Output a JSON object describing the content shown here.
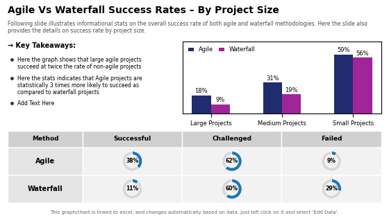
{
  "title": "Agile Vs Waterfall Success Rates – By Project Size",
  "subtitle": "Following slide illustrates informational stats on the overall success rate of both agile and waterfall methodologies. Here the slide also provides the details on success rate by project size.",
  "annotations": {
    "heading": "→ Key Takeaways:",
    "bullets": [
      "Here the graph shows that large agile projects\nsucceed at twice the rate of non-agile projects",
      "Here the stats indicates that Agile projects are\nstatistically 3 times more likely to succeed as\ncompared to waterfall projects",
      "Add Text Here"
    ],
    "footnote": "This graph/chart is linked to excel, and changes automatically based on data. Just left click on it and select 'Edit Data'."
  },
  "chart_data": [
    {
      "type": "bar",
      "categories": [
        "Large Projects",
        "Medium Projects",
        "Small Projects"
      ],
      "series": [
        {
          "name": "Agile",
          "color": "#1f2d6e",
          "values": [
            18,
            31,
            59
          ],
          "value_labels": [
            "18%",
            "31%",
            "59%"
          ]
        },
        {
          "name": "Waterfall",
          "color": "#a0259a",
          "values": [
            9,
            19,
            56
          ],
          "value_labels": [
            "9%",
            "19%",
            "56%"
          ]
        }
      ],
      "ylim": [
        0,
        72
      ],
      "yticks": [],
      "tick_labels": "x",
      "data_labels": true,
      "legend": "upper left",
      "grid": false
    },
    {
      "type": "table",
      "columns": [
        "Method",
        "Successful",
        "Challenged",
        "Failed"
      ],
      "colors": [
        "#1f77b4",
        "#d9d9d9"
      ],
      "rows": [
        {
          "name": "Agile",
          "cells": [
            {
              "type": "pie",
              "values": [
                38,
                62
              ],
              "value_labels": [
                "38%",
                null
              ]
            },
            {
              "type": "pie",
              "values": [
                62,
                38
              ],
              "value_labels": [
                "62%",
                null
              ]
            },
            {
              "type": "pie",
              "values": [
                9,
                91
              ],
              "value_labels": [
                "9%",
                null
              ]
            }
          ]
        },
        {
          "name": "Waterfall",
          "cells": [
            {
              "type": "pie",
              "values": [
                11,
                89
              ],
              "value_labels": [
                "11%",
                null
              ]
            },
            {
              "type": "pie",
              "values": [
                60,
                40
              ],
              "value_labels": [
                "60%",
                null
              ]
            },
            {
              "type": "pie",
              "values": [
                29,
                71
              ],
              "value_labels": [
                "29%",
                null
              ]
            }
          ]
        }
      ]
    }
  ]
}
